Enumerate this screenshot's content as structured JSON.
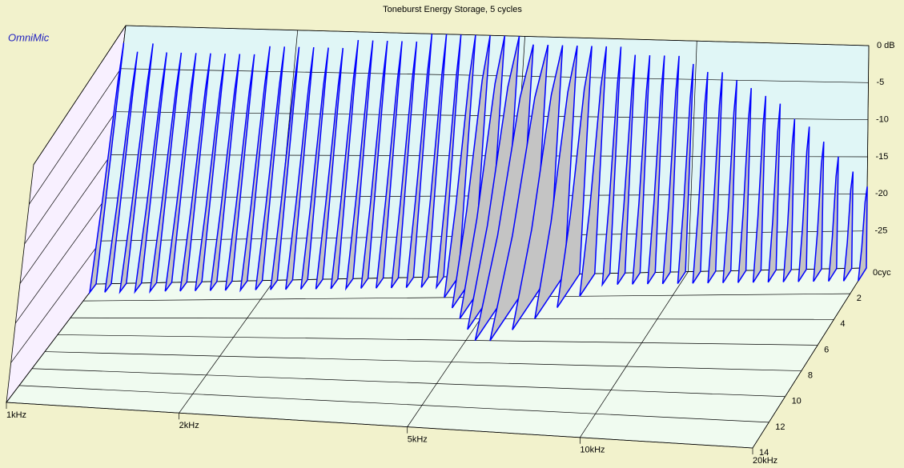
{
  "chart_data": {
    "type": "waterfall",
    "title": "Toneburst Energy Storage, 5 cycles",
    "brand": "OmniMic",
    "log_x": true,
    "xlim": [
      1000,
      20000
    ],
    "xticks": [
      {
        "value": 1000,
        "label": "1kHz"
      },
      {
        "value": 2000,
        "label": "2kHz"
      },
      {
        "value": 5000,
        "label": "5kHz"
      },
      {
        "value": 10000,
        "label": "10kHz"
      },
      {
        "value": 20000,
        "label": "20kHz"
      }
    ],
    "zlim": [
      -30,
      0
    ],
    "zticks": [
      {
        "value": 0,
        "label": "0 dB"
      },
      -5,
      -10,
      -15,
      -20,
      -25
    ],
    "ylim": [
      0,
      14
    ],
    "yticks": [
      {
        "value": 0,
        "label": "0cyc"
      },
      2,
      4,
      6,
      8,
      10,
      12,
      14
    ],
    "grid": true,
    "line_color": "#0000ff",
    "fill_color": "#c4c4c4",
    "x": [
      1000,
      1061,
      1125,
      1193,
      1265,
      1342,
      1423,
      1509,
      1600,
      1697,
      1800,
      1909,
      2024,
      2147,
      2277,
      2415,
      2561,
      2716,
      2880,
      3055,
      3240,
      3436,
      3644,
      3864,
      4098,
      4346,
      4609,
      4888,
      5184,
      5498,
      5831,
      6184,
      6558,
      6955,
      7376,
      7823,
      8296,
      8799,
      9331,
      9896,
      10495,
      11130,
      11804,
      12519,
      13277,
      14081,
      14934,
      15838,
      16797,
      17814,
      18892,
      20000
    ],
    "values": [
      -2,
      -3,
      -2,
      -3,
      -3,
      -3,
      -3,
      -3,
      -3,
      -3,
      -2,
      -2,
      -2,
      -2,
      -2,
      -2,
      -1,
      -1,
      -1,
      -1,
      -1,
      0,
      0,
      0,
      0,
      0,
      0,
      0,
      -1,
      -1,
      -1,
      -1,
      -1,
      -1,
      -1,
      -2,
      -2,
      -2,
      -2,
      -3,
      -4,
      -4,
      -5,
      -6,
      -7,
      -8,
      -10,
      -11,
      -13,
      -15,
      -17,
      -19
    ],
    "decay": [
      1,
      1,
      1,
      1,
      1,
      1,
      1,
      1,
      1,
      1,
      1,
      1,
      1,
      1,
      1,
      1,
      1,
      1,
      1,
      1,
      1,
      1,
      1,
      1,
      2,
      3,
      4,
      5,
      6,
      6,
      5,
      4,
      3,
      2,
      1,
      1,
      1,
      1,
      1,
      1,
      1,
      1,
      1,
      1,
      1,
      1,
      1,
      1,
      1,
      1,
      1,
      1
    ]
  }
}
